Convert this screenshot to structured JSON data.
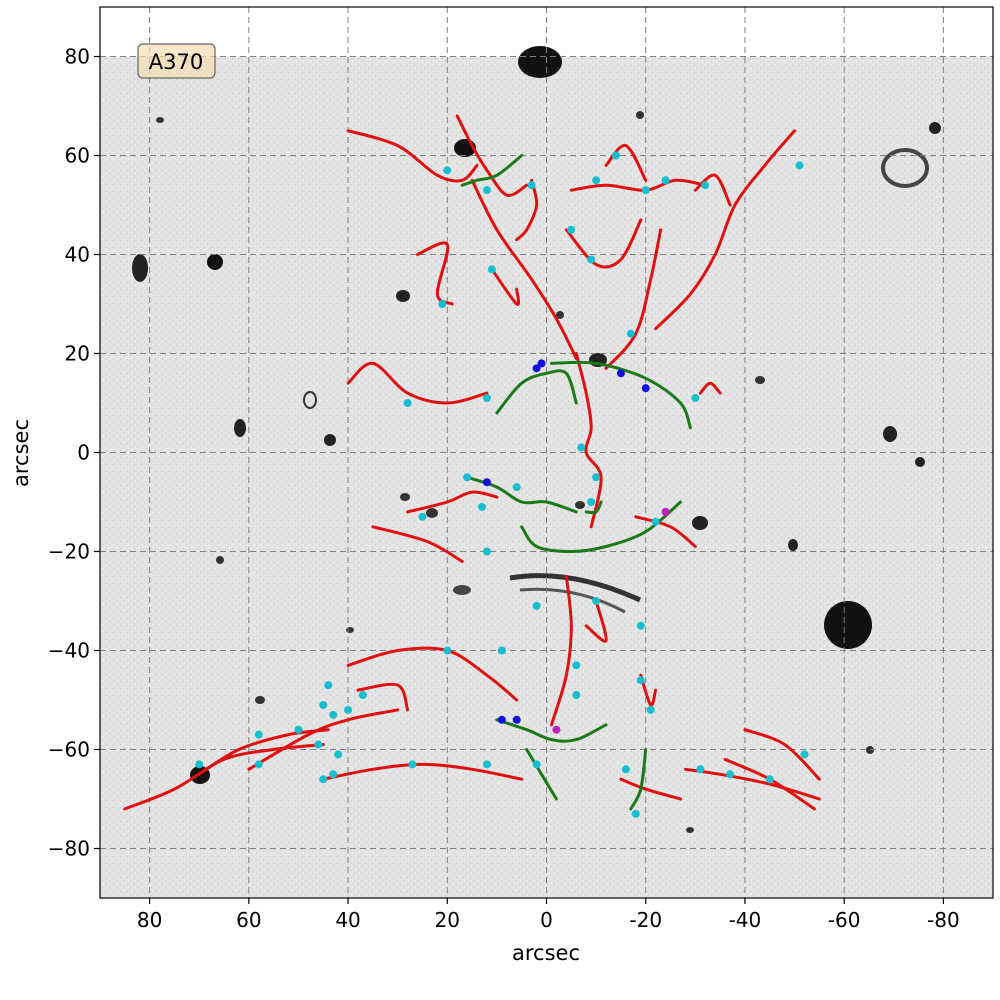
{
  "chart_data": {
    "type": "scatter",
    "xlabel": "arcsec",
    "ylabel": "arcsec",
    "x_reversed": true,
    "xlim": [
      90,
      -90
    ],
    "ylim": [
      -90,
      90
    ],
    "xticks": [
      80,
      60,
      40,
      20,
      0,
      -20,
      -40,
      -60,
      -80
    ],
    "xtick_labels": [
      "80",
      "60",
      "40",
      "20",
      "0",
      "-20",
      "-40",
      "-60",
      "-80"
    ],
    "yticks": [
      80,
      60,
      40,
      20,
      0,
      -20,
      -40,
      -60,
      -80
    ],
    "ytick_labels": [
      "80",
      "60",
      "40",
      "20",
      "0",
      "−20",
      "−40",
      "−60",
      "−80"
    ],
    "grid": true,
    "cluster_label": "A370",
    "colors": {
      "critical_curve": "#e01010",
      "caustic": "#1a7a1a",
      "cyan_points": "#17becf",
      "blue_points": "#1010e0",
      "magenta_points": "#c020c0",
      "grid": "#7f7f7f"
    },
    "image_footprint": [
      [
        90,
        80
      ],
      [
        -90,
        80
      ],
      [
        -90,
        -90
      ],
      [
        90,
        -90
      ]
    ],
    "red_curves": [
      [
        [
          40,
          65
        ],
        [
          30,
          62
        ],
        [
          22,
          56
        ],
        [
          17,
          55
        ],
        [
          14,
          58
        ]
      ],
      [
        [
          18,
          68
        ],
        [
          15,
          62
        ],
        [
          12,
          57
        ],
        [
          8,
          52
        ],
        [
          4,
          54
        ]
      ],
      [
        [
          -5,
          53
        ],
        [
          -12,
          54
        ],
        [
          -20,
          53
        ],
        [
          -26,
          55
        ],
        [
          -32,
          54
        ]
      ],
      [
        [
          -12,
          58
        ],
        [
          -16,
          62
        ],
        [
          -20,
          55
        ]
      ],
      [
        [
          3,
          55
        ],
        [
          2,
          50
        ],
        [
          4,
          45
        ],
        [
          6,
          43
        ]
      ],
      [
        [
          -4,
          45
        ],
        [
          -10,
          38
        ],
        [
          -15,
          39
        ],
        [
          -19,
          47
        ]
      ],
      [
        [
          -23,
          45
        ],
        [
          -21,
          35
        ],
        [
          -18,
          24
        ],
        [
          -12,
          17
        ]
      ],
      [
        [
          -50,
          65
        ],
        [
          -44,
          58
        ],
        [
          -38,
          50
        ],
        [
          -34,
          40
        ],
        [
          -29,
          32
        ],
        [
          -22,
          25
        ]
      ],
      [
        [
          -30,
          53
        ],
        [
          -34,
          56
        ],
        [
          -37,
          50
        ]
      ],
      [
        [
          26,
          40
        ],
        [
          20,
          42
        ],
        [
          22,
          32
        ],
        [
          19,
          30
        ]
      ],
      [
        [
          11,
          37
        ],
        [
          6,
          30
        ],
        [
          6,
          33
        ]
      ],
      [
        [
          15,
          55
        ],
        [
          10,
          45
        ],
        [
          3,
          35
        ],
        [
          -2,
          27
        ],
        [
          -6,
          19
        ]
      ],
      [
        [
          40,
          14
        ],
        [
          35,
          18
        ],
        [
          28,
          12
        ],
        [
          20,
          10
        ],
        [
          12,
          12
        ]
      ],
      [
        [
          -31,
          12
        ],
        [
          -33,
          14
        ],
        [
          -35,
          12
        ]
      ],
      [
        [
          -6,
          20
        ],
        [
          -8,
          12
        ],
        [
          -9,
          5
        ],
        [
          -8,
          0
        ],
        [
          -11,
          -5
        ],
        [
          -9,
          -15
        ]
      ],
      [
        [
          28,
          -12
        ],
        [
          20,
          -10
        ],
        [
          15,
          -8
        ],
        [
          10,
          -9
        ]
      ],
      [
        [
          -18,
          -13
        ],
        [
          -25,
          -15
        ],
        [
          -30,
          -19
        ]
      ],
      [
        [
          35,
          -15
        ],
        [
          24,
          -18
        ],
        [
          17,
          -22
        ]
      ],
      [
        [
          -4,
          -25
        ],
        [
          -5,
          -35
        ],
        [
          -4,
          -45
        ],
        [
          -1,
          -55
        ]
      ],
      [
        [
          40,
          -43
        ],
        [
          30,
          -40
        ],
        [
          20,
          -40
        ],
        [
          12,
          -45
        ],
        [
          6,
          -50
        ]
      ],
      [
        [
          -10,
          -30
        ],
        [
          -12,
          -38
        ],
        [
          -8,
          -35
        ]
      ],
      [
        [
          -19,
          -45
        ],
        [
          -21,
          -51
        ],
        [
          -22,
          -48
        ]
      ],
      [
        [
          60,
          -64
        ],
        [
          48,
          -57
        ],
        [
          40,
          -54
        ],
        [
          30,
          -52
        ]
      ],
      [
        [
          70,
          -65
        ],
        [
          62,
          -60
        ],
        [
          52,
          -57
        ],
        [
          44,
          -56
        ]
      ],
      [
        [
          85,
          -72
        ],
        [
          75,
          -68
        ],
        [
          65,
          -62
        ],
        [
          55,
          -60
        ],
        [
          45,
          -59
        ]
      ],
      [
        [
          45,
          -66
        ],
        [
          35,
          -64
        ],
        [
          25,
          -63
        ],
        [
          15,
          -64
        ],
        [
          5,
          -66
        ]
      ],
      [
        [
          38,
          -48
        ],
        [
          30,
          -47
        ],
        [
          28,
          -52
        ]
      ],
      [
        [
          -15,
          -66
        ],
        [
          -20,
          -68
        ],
        [
          -27,
          -70
        ]
      ],
      [
        [
          -28,
          -64
        ],
        [
          -35,
          -65
        ],
        [
          -45,
          -67
        ],
        [
          -55,
          -70
        ]
      ],
      [
        [
          -40,
          -56
        ],
        [
          -48,
          -59
        ],
        [
          -55,
          -66
        ]
      ],
      [
        [
          -36,
          -62
        ],
        [
          -45,
          -66
        ],
        [
          -54,
          -72
        ]
      ]
    ],
    "green_curves": [
      [
        [
          17,
          54
        ],
        [
          14,
          55
        ],
        [
          10,
          56
        ],
        [
          5,
          60
        ]
      ],
      [
        [
          -1,
          18
        ],
        [
          -10,
          18
        ],
        [
          -20,
          15
        ],
        [
          -27,
          10
        ],
        [
          -29,
          5
        ]
      ],
      [
        [
          10,
          8
        ],
        [
          5,
          14
        ],
        [
          0,
          16
        ],
        [
          -4,
          16
        ],
        [
          -6,
          10
        ]
      ],
      [
        [
          16,
          -5
        ],
        [
          10,
          -7
        ],
        [
          5,
          -10
        ],
        [
          0,
          -10
        ],
        [
          -6,
          -12
        ]
      ],
      [
        [
          5,
          -15
        ],
        [
          2,
          -19
        ],
        [
          -5,
          -20
        ],
        [
          -12,
          -19
        ],
        [
          -20,
          -16
        ],
        [
          -27,
          -10
        ]
      ],
      [
        [
          -8,
          -12
        ],
        [
          -10,
          -12
        ],
        [
          -11,
          -10
        ]
      ],
      [
        [
          10,
          -54
        ],
        [
          4,
          -56
        ],
        [
          -1,
          -58
        ],
        [
          -6,
          -58
        ],
        [
          -12,
          -55
        ]
      ],
      [
        [
          4,
          -60
        ],
        [
          1,
          -65
        ],
        [
          -2,
          -70
        ]
      ],
      [
        [
          -20,
          -60
        ],
        [
          -19,
          -68
        ],
        [
          -17,
          -72
        ]
      ]
    ],
    "cyan_points": [
      [
        20,
        57
      ],
      [
        12,
        53
      ],
      [
        -14,
        60
      ],
      [
        -20,
        53
      ],
      [
        -24,
        55
      ],
      [
        -32,
        54
      ],
      [
        -51,
        58
      ],
      [
        -10,
        55
      ],
      [
        3,
        54
      ],
      [
        -5,
        45
      ],
      [
        -9,
        39
      ],
      [
        21,
        30
      ],
      [
        11,
        37
      ],
      [
        -17,
        24
      ],
      [
        28,
        10
      ],
      [
        12,
        11
      ],
      [
        -30,
        11
      ],
      [
        -7,
        1
      ],
      [
        16,
        -5
      ],
      [
        6,
        -7
      ],
      [
        -10,
        -5
      ],
      [
        -9,
        -10
      ],
      [
        25,
        -13
      ],
      [
        13,
        -11
      ],
      [
        -22,
        -14
      ],
      [
        12,
        -20
      ],
      [
        2,
        -31
      ],
      [
        -10,
        -30
      ],
      [
        -19,
        -35
      ],
      [
        20,
        -40
      ],
      [
        9,
        -40
      ],
      [
        -6,
        -43
      ],
      [
        -19,
        -46
      ],
      [
        44,
        -47
      ],
      [
        45,
        -51
      ],
      [
        40,
        -52
      ],
      [
        43,
        -53
      ],
      [
        37,
        -49
      ],
      [
        50,
        -56
      ],
      [
        46,
        -59
      ],
      [
        58,
        -57
      ],
      [
        42,
        -61
      ],
      [
        70,
        -63
      ],
      [
        58,
        -63
      ],
      [
        27,
        -63
      ],
      [
        12,
        -63
      ],
      [
        45,
        -66
      ],
      [
        43,
        -65
      ],
      [
        2,
        -63
      ],
      [
        -16,
        -64
      ],
      [
        -31,
        -64
      ],
      [
        -37,
        -65
      ],
      [
        -45,
        -66
      ],
      [
        -52,
        -61
      ],
      [
        -6,
        -49
      ],
      [
        -21,
        -52
      ],
      [
        -18,
        -73
      ]
    ],
    "blue_points": [
      [
        2,
        17
      ],
      [
        1,
        18
      ],
      [
        -15,
        16
      ],
      [
        -20,
        13
      ],
      [
        12,
        -6
      ],
      [
        9,
        -54
      ],
      [
        6,
        -54
      ]
    ],
    "magenta_points": [
      [
        -24,
        -12
      ],
      [
        -2,
        -56
      ]
    ]
  }
}
